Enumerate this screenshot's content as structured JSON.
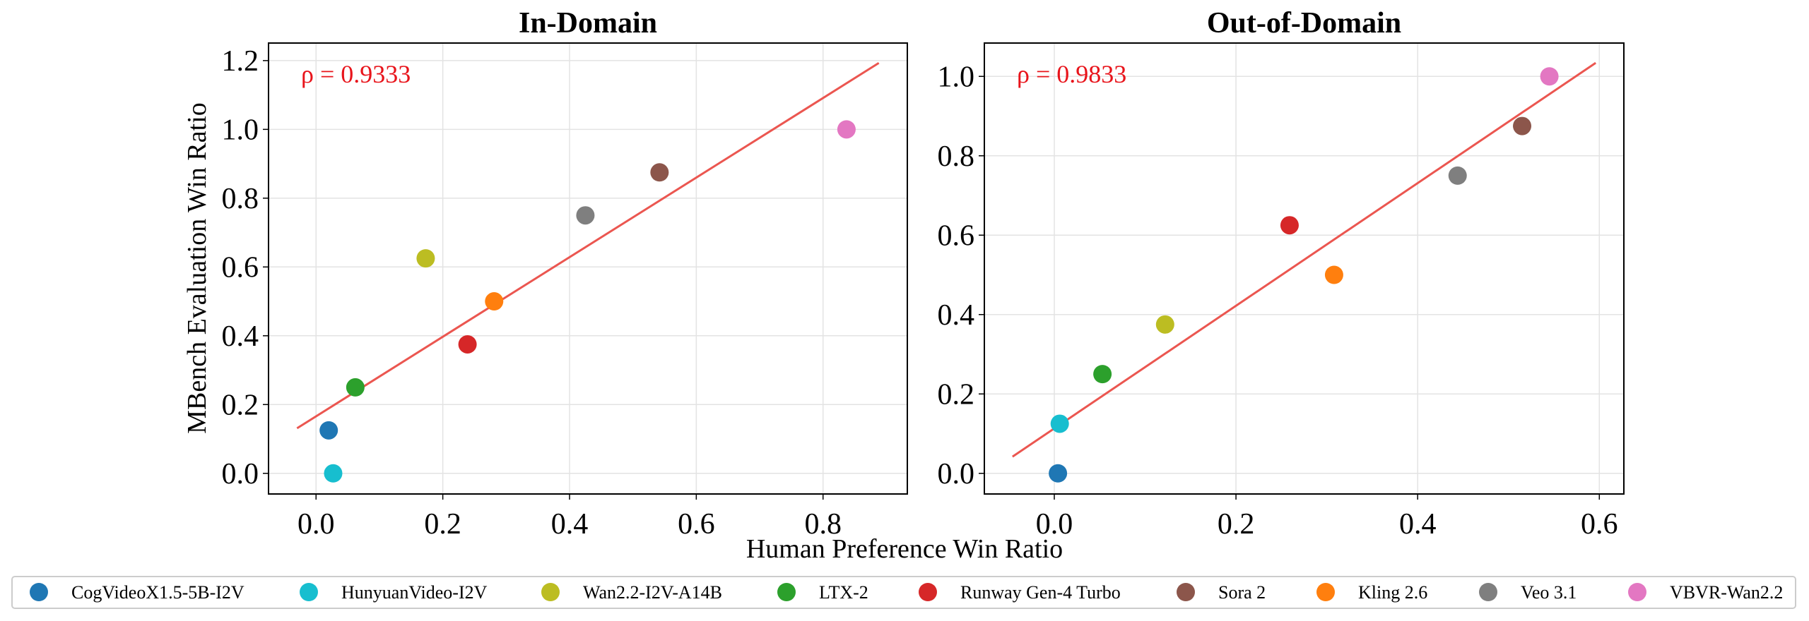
{
  "chart_data": [
    {
      "type": "scatter",
      "title": "In-Domain",
      "xlabel": "Human Preference Win Ratio",
      "ylabel": "MBench Evaluation Win Ratio",
      "xlim": [
        -0.075,
        0.933
      ],
      "ylim": [
        -0.06,
        1.251
      ],
      "xticks": [
        "0.0",
        "0.2",
        "0.4",
        "0.6",
        "0.8"
      ],
      "yticks": [
        "0.0",
        "0.2",
        "0.4",
        "0.6",
        "0.8",
        "1.0",
        "1.2"
      ],
      "grid": true,
      "annotation": "ρ = 0.9333",
      "fit_line": {
        "x": [
          -0.03,
          0.888
        ],
        "y": [
          0.131,
          1.193
        ]
      },
      "points": [
        {
          "name": "CogVideoX1.5-5B-I2V",
          "x": 0.02,
          "y": 0.125
        },
        {
          "name": "HunyuanVideo-I2V",
          "x": 0.027,
          "y": 0.0
        },
        {
          "name": "Wan2.2-I2V-A14B",
          "x": 0.173,
          "y": 0.625
        },
        {
          "name": "LTX-2",
          "x": 0.062,
          "y": 0.25
        },
        {
          "name": "Runway Gen-4 Turbo",
          "x": 0.239,
          "y": 0.375
        },
        {
          "name": "Sora 2",
          "x": 0.542,
          "y": 0.875
        },
        {
          "name": "Kling 2.6",
          "x": 0.281,
          "y": 0.5
        },
        {
          "name": "Veo 3.1",
          "x": 0.425,
          "y": 0.75
        },
        {
          "name": "VBVR-Wan2.2",
          "x": 0.837,
          "y": 1.0
        }
      ]
    },
    {
      "type": "scatter",
      "title": "Out-of-Domain",
      "xlim": [
        -0.077,
        0.627
      ],
      "ylim": [
        -0.052,
        1.084
      ],
      "xticks": [
        "0.0",
        "0.2",
        "0.4",
        "0.6"
      ],
      "yticks": [
        "0.0",
        "0.2",
        "0.4",
        "0.6",
        "0.8",
        "1.0"
      ],
      "grid": true,
      "annotation": "ρ = 0.9833",
      "fit_line": {
        "x": [
          -0.046,
          0.596
        ],
        "y": [
          0.042,
          1.034
        ]
      },
      "points": [
        {
          "name": "CogVideoX1.5-5B-I2V",
          "x": 0.004,
          "y": 0.0
        },
        {
          "name": "HunyuanVideo-I2V",
          "x": 0.006,
          "y": 0.125
        },
        {
          "name": "Wan2.2-I2V-A14B",
          "x": 0.122,
          "y": 0.375
        },
        {
          "name": "LTX-2",
          "x": 0.053,
          "y": 0.25
        },
        {
          "name": "Runway Gen-4 Turbo",
          "x": 0.259,
          "y": 0.625
        },
        {
          "name": "Sora 2",
          "x": 0.515,
          "y": 0.875
        },
        {
          "name": "Kling 2.6",
          "x": 0.308,
          "y": 0.5
        },
        {
          "name": "Veo 3.1",
          "x": 0.444,
          "y": 0.75
        },
        {
          "name": "VBVR-Wan2.2",
          "x": 0.545,
          "y": 1.0
        }
      ]
    }
  ],
  "legend": {
    "placement": "bottom",
    "entries": [
      {
        "name": "CogVideoX1.5-5B-I2V",
        "color": "#1f77b4"
      },
      {
        "name": "HunyuanVideo-I2V",
        "color": "#17becf"
      },
      {
        "name": "Wan2.2-I2V-A14B",
        "color": "#bcbd22"
      },
      {
        "name": "LTX-2",
        "color": "#2ca02c"
      },
      {
        "name": "Runway Gen-4 Turbo",
        "color": "#d62728"
      },
      {
        "name": "Sora 2",
        "color": "#8c564b"
      },
      {
        "name": "Kling 2.6",
        "color": "#ff7f0e"
      },
      {
        "name": "Veo 3.1",
        "color": "#7f7f7f"
      },
      {
        "name": "VBVR-Wan2.2",
        "color": "#e377c2"
      }
    ]
  },
  "colors": {
    "fit_line": "#eb5650",
    "annotation": "#e8141b"
  }
}
